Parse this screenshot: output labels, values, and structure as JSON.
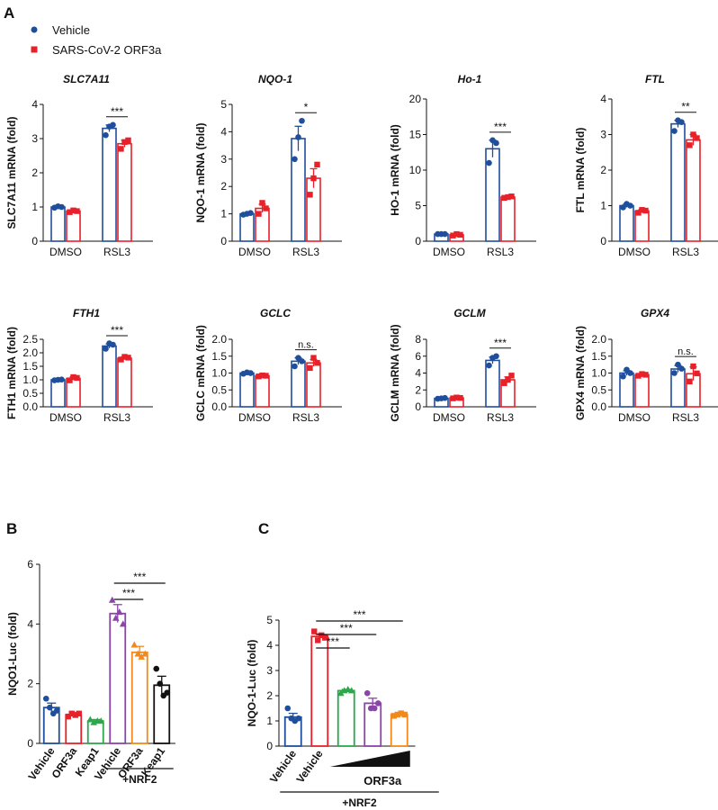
{
  "panel_labels": {
    "a": "A",
    "b": "B",
    "c": "C"
  },
  "legend": [
    {
      "label": "Vehicle",
      "color": "#1f4e9c",
      "marker": "circle"
    },
    {
      "label": "SARS-CoV-2 ORF3a",
      "color": "#e8202a",
      "marker": "square"
    }
  ],
  "colors": {
    "vehicle": "#1f4e9c",
    "orf3a": "#e8202a",
    "green": "#2aa84a",
    "purple": "#8b44a8",
    "orange": "#f08a1c",
    "black": "#111111"
  },
  "chart_data": [
    {
      "id": "slc7a11",
      "type": "bar",
      "title": "SLC7A11",
      "ylabel": "SLC7A11 mRNA (fold)",
      "categories": [
        "DMSO",
        "RSL3"
      ],
      "ylim": [
        0,
        4
      ],
      "yticks": [
        0,
        1,
        2,
        3,
        4
      ],
      "ytick_labels": [
        "0",
        "1",
        "2",
        "3",
        "4"
      ],
      "series": [
        {
          "name": "Vehicle",
          "values": [
            1.0,
            3.3
          ],
          "errors": [
            0.05,
            0.1
          ],
          "points": [
            [
              0.98,
              1.02,
              1.0
            ],
            [
              3.1,
              3.35,
              3.4
            ]
          ]
        },
        {
          "name": "SARS-CoV-2 ORF3a",
          "values": [
            0.88,
            2.85
          ],
          "errors": [
            0.03,
            0.1
          ],
          "points": [
            [
              0.85,
              0.9,
              0.88
            ],
            [
              2.7,
              2.9,
              2.95
            ]
          ]
        }
      ],
      "significance": [
        {
          "text": "***",
          "group": 1
        }
      ]
    },
    {
      "id": "nqo1",
      "type": "bar",
      "title": "NQO-1",
      "ylabel": "NQO-1 mRNA (fold)",
      "categories": [
        "DMSO",
        "RSL3"
      ],
      "ylim": [
        0,
        5
      ],
      "yticks": [
        0,
        1,
        2,
        3,
        4,
        5
      ],
      "ytick_labels": [
        "0",
        "1",
        "2",
        "3",
        "4",
        "5"
      ],
      "series": [
        {
          "name": "Vehicle",
          "values": [
            1.0,
            3.75
          ],
          "errors": [
            0.03,
            0.45
          ],
          "points": [
            [
              0.97,
              1.0,
              1.03
            ],
            [
              3.0,
              3.8,
              4.4
            ]
          ]
        },
        {
          "name": "SARS-CoV-2 ORF3a",
          "values": [
            1.2,
            2.3
          ],
          "errors": [
            0.15,
            0.35
          ],
          "points": [
            [
              1.0,
              1.4,
              1.2
            ],
            [
              1.7,
              2.3,
              2.8
            ]
          ]
        }
      ],
      "significance": [
        {
          "text": "*",
          "group": 1
        }
      ]
    },
    {
      "id": "ho1",
      "type": "bar",
      "title": "Ho-1",
      "ylabel": "HO-1 mRNA (fold)",
      "categories": [
        "DMSO",
        "RSL3"
      ],
      "ylim": [
        0,
        20
      ],
      "yticks": [
        0,
        5,
        10,
        15,
        20
      ],
      "ytick_labels": [
        "0",
        "5",
        "10",
        "15",
        "20"
      ],
      "series": [
        {
          "name": "Vehicle",
          "values": [
            1.0,
            13.0
          ],
          "errors": [
            0.05,
            1.2
          ],
          "points": [
            [
              1.0,
              1.0,
              1.0
            ],
            [
              11.0,
              14.2,
              13.8
            ]
          ]
        },
        {
          "name": "SARS-CoV-2 ORF3a",
          "values": [
            0.9,
            6.2
          ],
          "errors": [
            0.1,
            0.1
          ],
          "points": [
            [
              0.8,
              1.0,
              0.9
            ],
            [
              6.1,
              6.2,
              6.3
            ]
          ]
        }
      ],
      "significance": [
        {
          "text": "***",
          "group": 1
        }
      ]
    },
    {
      "id": "ftl",
      "type": "bar",
      "title": "FTL",
      "ylabel": "FTL mRNA (fold)",
      "categories": [
        "DMSO",
        "RSL3"
      ],
      "ylim": [
        0,
        4
      ],
      "yticks": [
        0,
        1,
        2,
        3,
        4
      ],
      "ytick_labels": [
        "0",
        "1",
        "2",
        "3",
        "4"
      ],
      "series": [
        {
          "name": "Vehicle",
          "values": [
            1.0,
            3.3
          ],
          "errors": [
            0.05,
            0.1
          ],
          "points": [
            [
              0.95,
              1.05,
              1.0
            ],
            [
              3.1,
              3.4,
              3.35
            ]
          ]
        },
        {
          "name": "SARS-CoV-2 ORF3a",
          "values": [
            0.85,
            2.85
          ],
          "errors": [
            0.04,
            0.15
          ],
          "points": [
            [
              0.8,
              0.88,
              0.86
            ],
            [
              2.7,
              3.0,
              2.9
            ]
          ]
        }
      ],
      "significance": [
        {
          "text": "**",
          "group": 1
        }
      ]
    },
    {
      "id": "fth1",
      "type": "bar",
      "title": "FTH1",
      "ylabel": "FTH1 mRNA (fold)",
      "categories": [
        "DMSO",
        "RSL3"
      ],
      "ylim": [
        0,
        2.5
      ],
      "yticks": [
        0,
        0.5,
        1,
        1.5,
        2,
        2.5
      ],
      "ytick_labels": [
        "0.0",
        "0.5",
        "1.0",
        "1.5",
        "2.0",
        "2.5"
      ],
      "series": [
        {
          "name": "Vehicle",
          "values": [
            1.0,
            2.25
          ],
          "errors": [
            0.02,
            0.08
          ],
          "points": [
            [
              0.98,
              1.0,
              1.01
            ],
            [
              2.15,
              2.35,
              2.3
            ]
          ]
        },
        {
          "name": "SARS-CoV-2 ORF3a",
          "values": [
            1.05,
            1.8
          ],
          "errors": [
            0.06,
            0.05
          ],
          "points": [
            [
              0.98,
              1.1,
              1.07
            ],
            [
              1.75,
              1.85,
              1.82
            ]
          ]
        }
      ],
      "significance": [
        {
          "text": "***",
          "group": 1
        }
      ]
    },
    {
      "id": "gclc",
      "type": "bar",
      "title": "GCLC",
      "ylabel": "GCLC mRNA (fold)",
      "categories": [
        "DMSO",
        "RSL3"
      ],
      "ylim": [
        0,
        2
      ],
      "yticks": [
        0,
        0.5,
        1,
        1.5,
        2
      ],
      "ytick_labels": [
        "0.0",
        "0.5",
        "1.0",
        "1.5",
        "2.0"
      ],
      "series": [
        {
          "name": "Vehicle",
          "values": [
            1.0,
            1.35
          ],
          "errors": [
            0.02,
            0.1
          ],
          "points": [
            [
              0.98,
              1.02,
              1.0
            ],
            [
              1.2,
              1.45,
              1.35
            ]
          ]
        },
        {
          "name": "SARS-CoV-2 ORF3a",
          "values": [
            0.92,
            1.3
          ],
          "errors": [
            0.02,
            0.1
          ],
          "points": [
            [
              0.9,
              0.93,
              0.92
            ],
            [
              1.15,
              1.45,
              1.3
            ]
          ]
        }
      ],
      "significance": [
        {
          "text": "n.s.",
          "group": 1
        }
      ]
    },
    {
      "id": "gclm",
      "type": "bar",
      "title": "GCLM",
      "ylabel": "GCLM mRNA (fold)",
      "categories": [
        "DMSO",
        "RSL3"
      ],
      "ylim": [
        0,
        8
      ],
      "yticks": [
        0,
        2,
        4,
        6,
        8
      ],
      "ytick_labels": [
        "0",
        "2",
        "4",
        "6",
        "8"
      ],
      "series": [
        {
          "name": "Vehicle",
          "values": [
            1.0,
            5.5
          ],
          "errors": [
            0.05,
            0.4
          ],
          "points": [
            [
              0.95,
              1.0,
              1.05
            ],
            [
              4.9,
              5.8,
              6.0
            ]
          ]
        },
        {
          "name": "SARS-CoV-2 ORF3a",
          "values": [
            1.05,
            3.2
          ],
          "errors": [
            0.05,
            0.35
          ],
          "points": [
            [
              1.0,
              1.1,
              1.05
            ],
            [
              2.8,
              3.2,
              3.7
            ]
          ]
        }
      ],
      "significance": [
        {
          "text": "***",
          "group": 1
        }
      ]
    },
    {
      "id": "gpx4",
      "type": "bar",
      "title": "GPX4",
      "ylabel": "GPX4 mRNA (fold)",
      "categories": [
        "DMSO",
        "RSL3"
      ],
      "ylim": [
        0,
        2
      ],
      "yticks": [
        0,
        0.5,
        1,
        1.5,
        2
      ],
      "ytick_labels": [
        "0.0",
        "0.5",
        "1.0",
        "1.5",
        "2.0"
      ],
      "series": [
        {
          "name": "Vehicle",
          "values": [
            1.0,
            1.12
          ],
          "errors": [
            0.07,
            0.1
          ],
          "points": [
            [
              0.9,
              1.1,
              1.0
            ],
            [
              1.0,
              1.25,
              1.13
            ]
          ]
        },
        {
          "name": "SARS-CoV-2 ORF3a",
          "values": [
            0.95,
            0.98
          ],
          "errors": [
            0.03,
            0.2
          ],
          "points": [
            [
              0.92,
              0.97,
              0.95
            ],
            [
              0.75,
              1.2,
              0.99
            ]
          ]
        }
      ],
      "significance": [
        {
          "text": "n.s.",
          "group": 1
        }
      ]
    },
    {
      "id": "panelB",
      "type": "bar",
      "title": "",
      "ylabel": "NQO1-Luc (fold)",
      "ylim": [
        0,
        6
      ],
      "yticks": [
        0,
        2,
        4,
        6
      ],
      "ytick_labels": [
        "0",
        "2",
        "4",
        "6"
      ],
      "categories": [
        "Vehicle",
        "ORF3a",
        "Keap1",
        "Vehicle",
        "ORF3a",
        "Keap1"
      ],
      "values": [
        1.2,
        0.95,
        0.75,
        4.35,
        3.05,
        1.95
      ],
      "errors": [
        0.15,
        0.08,
        0.05,
        0.3,
        0.2,
        0.3
      ],
      "bar_colors": [
        "#1f4e9c",
        "#e8202a",
        "#2aa84a",
        "#8b44a8",
        "#f08a1c",
        "#111111"
      ],
      "markers": [
        "circle",
        "square",
        "triangle",
        "triangle",
        "triangle",
        "circle"
      ],
      "points": [
        [
          1.5,
          1.2,
          1.0,
          1.1
        ],
        [
          0.9,
          1.0,
          0.95,
          1.0
        ],
        [
          0.8,
          0.7,
          0.75,
          0.75
        ],
        [
          4.8,
          4.2,
          4.4,
          4.0
        ],
        [
          3.3,
          3.0,
          2.9,
          3.0
        ],
        [
          2.5,
          2.0,
          1.6,
          1.7
        ]
      ],
      "group_label": "+NRF2",
      "group_span": [
        3,
        5
      ],
      "significance": [
        {
          "text": "***",
          "from": 3,
          "to": 4
        },
        {
          "text": "***",
          "from": 3,
          "to": 5
        }
      ]
    },
    {
      "id": "panelC",
      "type": "bar",
      "title": "",
      "ylabel": "NQO-1-Luc (fold)",
      "ylim": [
        0,
        5
      ],
      "yticks": [
        0,
        1,
        2,
        3,
        4,
        5
      ],
      "ytick_labels": [
        "0",
        "1",
        "2",
        "3",
        "4",
        "5"
      ],
      "categories": [
        "Vehicle",
        "Vehicle",
        "",
        "",
        ""
      ],
      "values": [
        1.15,
        4.35,
        2.2,
        1.7,
        1.25
      ],
      "errors": [
        0.15,
        0.1,
        0.05,
        0.2,
        0.05
      ],
      "bar_colors": [
        "#1f4e9c",
        "#e8202a",
        "#2aa84a",
        "#8b44a8",
        "#f08a1c"
      ],
      "markers": [
        "circle",
        "square",
        "triangle",
        "circle",
        "square"
      ],
      "points": [
        [
          1.5,
          1.1,
          1.0,
          1.1
        ],
        [
          4.55,
          4.2,
          4.4,
          4.3
        ],
        [
          2.1,
          2.2,
          2.25,
          2.2
        ],
        [
          2.1,
          1.5,
          1.5,
          1.7
        ],
        [
          1.2,
          1.25,
          1.3,
          1.25
        ]
      ],
      "ramp_label": "ORF3a",
      "group_label": "+NRF2",
      "group_span": [
        1,
        4
      ],
      "significance": [
        {
          "text": "***",
          "from": 1,
          "to": 2
        },
        {
          "text": "***",
          "from": 1,
          "to": 3
        },
        {
          "text": "***",
          "from": 1,
          "to": 4
        }
      ]
    }
  ]
}
